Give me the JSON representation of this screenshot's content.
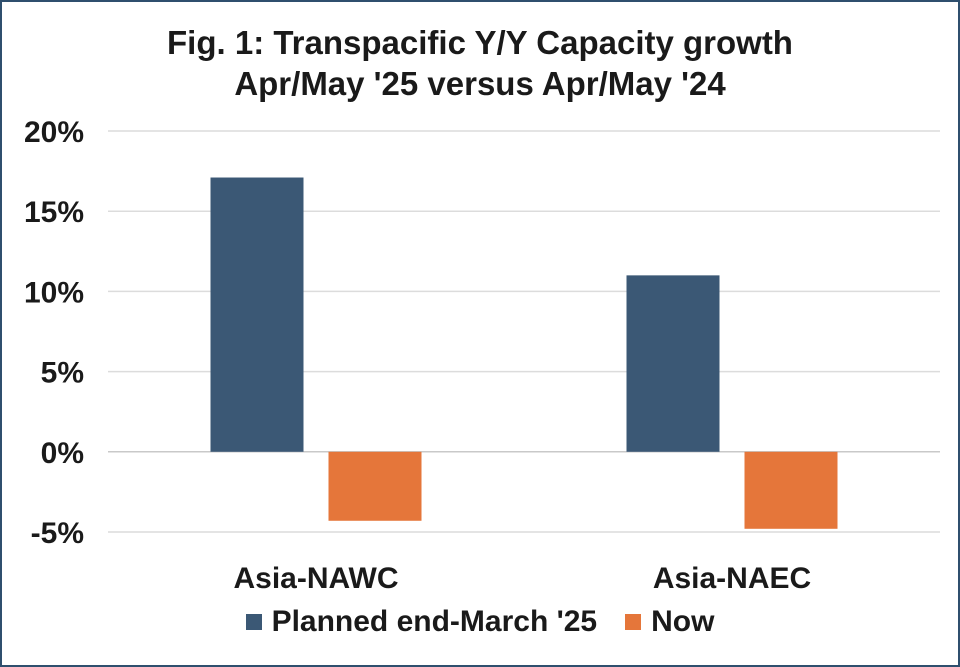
{
  "chart_data": {
    "type": "bar",
    "title": "Fig. 1: Transpacific Y/Y Capacity growth",
    "subtitle": "Apr/May '25 versus Apr/May '24",
    "categories": [
      "Asia-NAWC",
      "Asia-NAEC"
    ],
    "series": [
      {
        "name": "Planned end-March '25",
        "values": [
          17.1,
          11.0
        ],
        "color": "#3b5875"
      },
      {
        "name": "Now",
        "values": [
          -4.3,
          -4.8
        ],
        "color": "#e5763a"
      }
    ],
    "yticks": [
      "20%",
      "15%",
      "10%",
      "5%",
      "0%",
      "-5%"
    ],
    "ylim": [
      -5,
      20
    ],
    "grid": true,
    "legend_position": "bottom"
  }
}
